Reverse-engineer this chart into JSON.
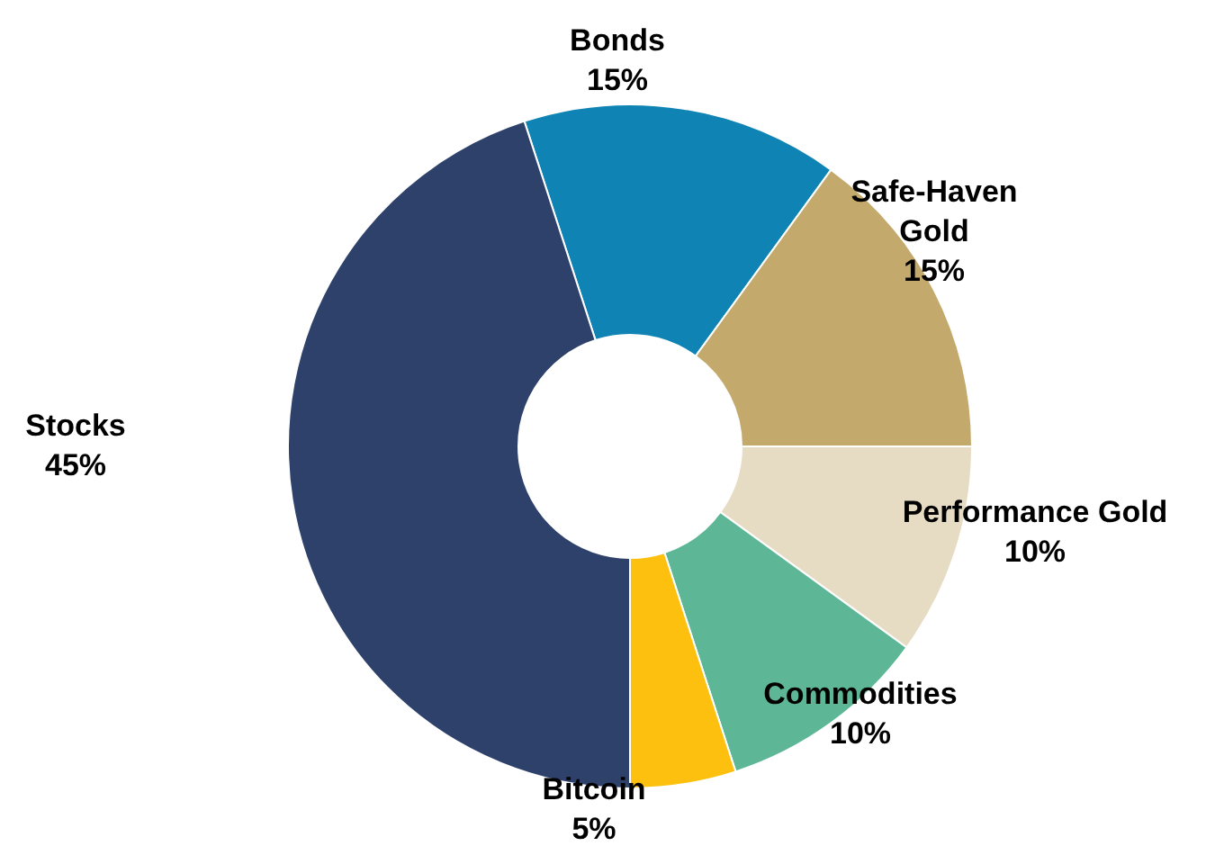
{
  "chart_data": {
    "type": "donut",
    "categories": [
      "Bonds",
      "Safe-Haven Gold",
      "Performance Gold",
      "Commodities",
      "Bitcoin",
      "Stocks"
    ],
    "values": [
      15,
      15,
      10,
      10,
      5,
      45
    ],
    "colors": [
      "#0e83b4",
      "#c3a96b",
      "#e6dcc4",
      "#5db797",
      "#fdc00f",
      "#2e416a"
    ],
    "value_labels": [
      "15%",
      "15%",
      "10%",
      "10%",
      "5%",
      "45%"
    ],
    "legend": false
  }
}
